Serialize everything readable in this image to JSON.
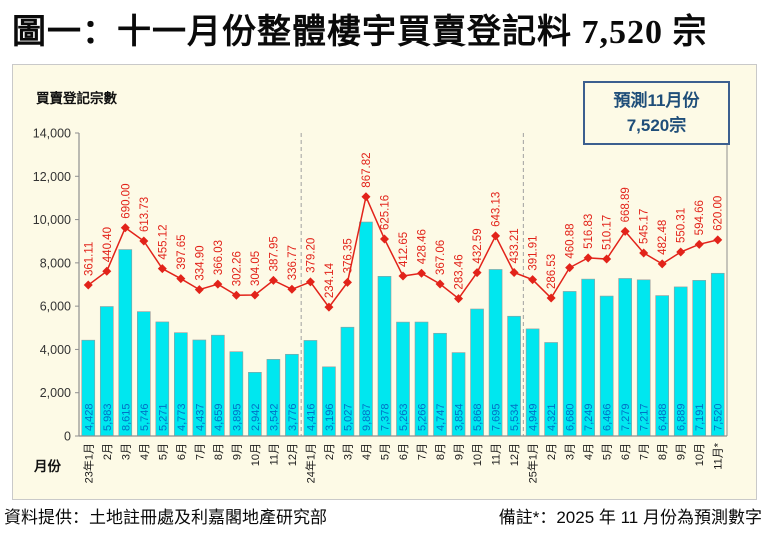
{
  "page": {
    "title": "圖一：十一月份整體樓宇買賣登記料 7,520 宗",
    "footer_left": "資料提供：土地註冊處及利嘉閣地產研究部",
    "footer_right": "備註*：2025 年 11 月份為預測數字"
  },
  "chart": {
    "y_axis_title": "買賣登記宗數",
    "x_axis_title": "月份",
    "forecast_box": {
      "line1": "預測11月份",
      "line2": "7,520宗"
    },
    "colors": {
      "panel_bg": "#fdfae6",
      "bar_fill": "#00e7ef",
      "bar_label": "#0072c6",
      "line_color": "#e2231a",
      "line_label": "#e2231a",
      "forecast_text": "#1f4e79",
      "forecast_border": "#3c5f8f",
      "axis": "#8f8f8f",
      "divider": "#a0a0a0",
      "tick_text": "#333333"
    }
  },
  "chart_data": {
    "type": "bar",
    "title": "圖一：十一月份整體樓宇買賣登記料 7,520 宗",
    "xlabel": "月份",
    "ylabel": "買賣登記宗數",
    "ylim": [
      0,
      14000
    ],
    "y_ticks": [
      0,
      2000,
      4000,
      6000,
      8000,
      10000,
      12000,
      14000
    ],
    "grid": false,
    "legend_position": "none",
    "year_dividers_after_index": [
      11,
      23
    ],
    "categories": [
      "23年1月",
      "2月",
      "3月",
      "4月",
      "5月",
      "6月",
      "7月",
      "8月",
      "9月",
      "10月",
      "11月",
      "12月",
      "24年1月",
      "2月",
      "3月",
      "4月",
      "5月",
      "6月",
      "7月",
      "8月",
      "9月",
      "10月",
      "11月",
      "12月",
      "25年1月",
      "2月",
      "3月",
      "4月",
      "5月",
      "6月",
      "7月",
      "8月",
      "9月",
      "10月",
      "11月*"
    ],
    "series": [
      {
        "name": "買賣登記宗數",
        "type": "bar",
        "values": [
          4428,
          5983,
          8615,
          5746,
          5271,
          4773,
          4437,
          4659,
          3895,
          2942,
          3542,
          3776,
          4416,
          3196,
          5027,
          9887,
          7378,
          5263,
          5266,
          4747,
          3854,
          5868,
          7695,
          5534,
          4949,
          4321,
          6680,
          7249,
          6466,
          7279,
          7217,
          6488,
          6889,
          7191,
          7520
        ]
      },
      {
        "name": "買賣登記金額",
        "type": "line",
        "values": [
          361.11,
          440.4,
          690.0,
          613.73,
          455.12,
          397.65,
          334.9,
          366.03,
          302.26,
          304.05,
          387.95,
          336.77,
          379.2,
          234.14,
          376.35,
          867.82,
          625.16,
          412.65,
          428.46,
          367.06,
          283.46,
          432.59,
          643.13,
          433.21,
          391.91,
          286.53,
          460.88,
          516.83,
          510.17,
          668.89,
          545.17,
          482.48,
          550.31,
          594.66,
          620.0
        ]
      }
    ]
  }
}
